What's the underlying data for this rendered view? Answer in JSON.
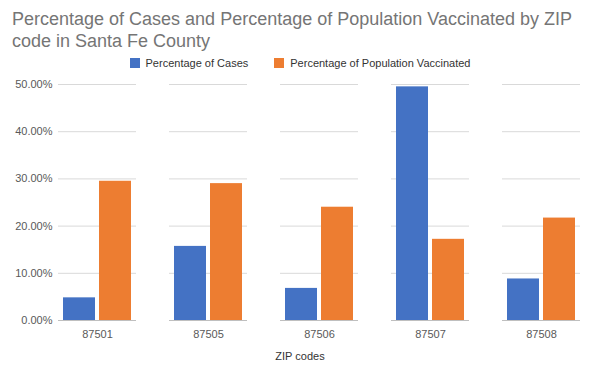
{
  "chart_data": {
    "type": "bar",
    "title": "Percentage of Cases and Percentage of Population Vaccinated by ZIP code in Santa Fe County",
    "x_label": "ZIP codes",
    "categories": [
      "87501",
      "87505",
      "87506",
      "87507",
      "87508"
    ],
    "series": [
      {
        "name": "Percentage of Cases",
        "color": "#4472c4",
        "values": [
          4.8,
          15.7,
          6.8,
          49.5,
          8.8
        ]
      },
      {
        "name": "Percentage of Population Vaccinated",
        "color": "#ed7d31",
        "values": [
          29.5,
          29.0,
          24.0,
          17.2,
          21.7
        ]
      }
    ],
    "ylim": [
      0,
      50
    ],
    "yticks": [
      {
        "value": 0,
        "label": "0.00%"
      },
      {
        "value": 10,
        "label": "10.00%"
      },
      {
        "value": 20,
        "label": "20.00%"
      },
      {
        "value": 30,
        "label": "30.00%"
      },
      {
        "value": 40,
        "label": "40.00%"
      },
      {
        "value": 50,
        "label": "50.00%"
      }
    ],
    "grid": true,
    "legend": "top"
  }
}
